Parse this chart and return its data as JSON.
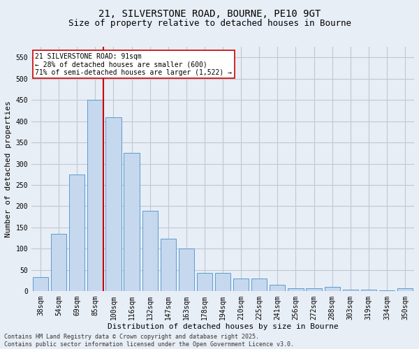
{
  "title_line1": "21, SILVERSTONE ROAD, BOURNE, PE10 9GT",
  "title_line2": "Size of property relative to detached houses in Bourne",
  "xlabel": "Distribution of detached houses by size in Bourne",
  "ylabel": "Number of detached properties",
  "categories": [
    "38sqm",
    "54sqm",
    "69sqm",
    "85sqm",
    "100sqm",
    "116sqm",
    "132sqm",
    "147sqm",
    "163sqm",
    "178sqm",
    "194sqm",
    "210sqm",
    "225sqm",
    "241sqm",
    "256sqm",
    "272sqm",
    "288sqm",
    "303sqm",
    "319sqm",
    "334sqm",
    "350sqm"
  ],
  "values": [
    33,
    135,
    274,
    450,
    410,
    325,
    190,
    124,
    101,
    44,
    44,
    30,
    30,
    16,
    7,
    7,
    10,
    4,
    4,
    3,
    7
  ],
  "bar_color": "#c5d8ed",
  "bar_edge_color": "#5b9bd5",
  "vline_color": "#cc0000",
  "annotation_text": "21 SILVERSTONE ROAD: 91sqm\n← 28% of detached houses are smaller (600)\n71% of semi-detached houses are larger (1,522) →",
  "annotation_box_color": "#ffffff",
  "annotation_box_edge": "#cc0000",
  "ylim": [
    0,
    575
  ],
  "yticks": [
    0,
    50,
    100,
    150,
    200,
    250,
    300,
    350,
    400,
    450,
    500,
    550
  ],
  "grid_color": "#c0c8d8",
  "background_color": "#e8eef5",
  "footer_line1": "Contains HM Land Registry data © Crown copyright and database right 2025.",
  "footer_line2": "Contains public sector information licensed under the Open Government Licence v3.0.",
  "title_fontsize": 10,
  "subtitle_fontsize": 9,
  "axis_label_fontsize": 8,
  "tick_fontsize": 7,
  "annotation_fontsize": 7,
  "footer_fontsize": 6
}
